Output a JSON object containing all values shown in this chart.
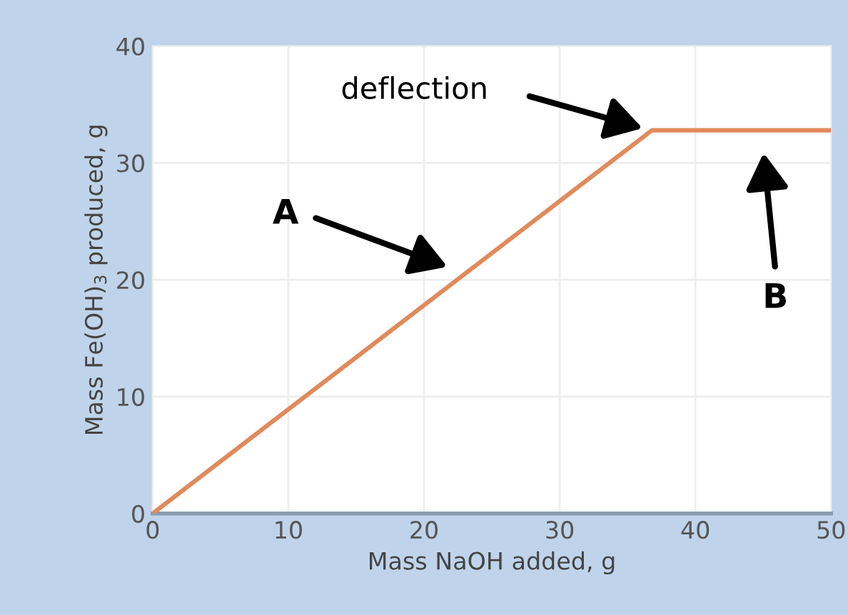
{
  "chart_data": {
    "type": "line",
    "xlabel": "Mass NaOH added, g",
    "ylabel": "Mass Fe(OH)$_{3}$ produced, g",
    "x": [
      0,
      36.8,
      50
    ],
    "series": [
      {
        "color": "#e08a5c",
        "values": [
          0,
          32.8,
          32.8
        ]
      }
    ],
    "xlim": [
      0,
      50
    ],
    "ylim": [
      0,
      40
    ],
    "xticks": [
      0,
      10,
      20,
      30,
      40,
      50
    ],
    "yticks": [
      0,
      10,
      20,
      30,
      40
    ],
    "grid": true,
    "marker": "none",
    "line_style": "solid",
    "annotations": [
      "deflection",
      "A",
      "B"
    ]
  }
}
